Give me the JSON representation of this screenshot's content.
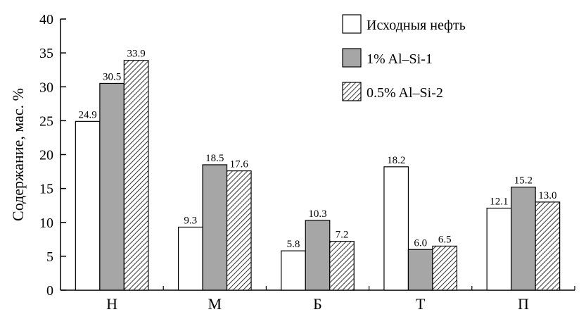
{
  "chart_data": {
    "type": "bar",
    "title": "",
    "xlabel": "",
    "ylabel": "Содержание, мас. %",
    "ylim": [
      0,
      40
    ],
    "yticks": [
      0,
      5,
      10,
      15,
      20,
      25,
      30,
      35,
      40
    ],
    "categories": [
      "Н",
      "М",
      "Б",
      "Т",
      "П"
    ],
    "series": [
      {
        "name": "Исходныя нефть",
        "values": [
          24.9,
          9.3,
          5.8,
          18.2,
          12.1
        ],
        "labels": [
          "24.9",
          "9.3",
          "5.8",
          "18.2",
          "12.1"
        ],
        "fill": "#ffffff"
      },
      {
        "name": "1% Al–Si-1",
        "values": [
          30.5,
          18.5,
          10.3,
          6.0,
          15.2
        ],
        "labels": [
          "30.5",
          "18.5",
          "10.3",
          "6.0",
          "15.2"
        ],
        "fill": "#a6a6a6"
      },
      {
        "name": "0.5% Al–Si-2",
        "values": [
          33.9,
          17.6,
          7.2,
          6.5,
          13.0
        ],
        "labels": [
          "33.9",
          "17.6",
          "7.2",
          "6.5",
          "13.0"
        ],
        "fill": "hatch"
      }
    ],
    "legend_position": "top-right",
    "grid": false
  }
}
